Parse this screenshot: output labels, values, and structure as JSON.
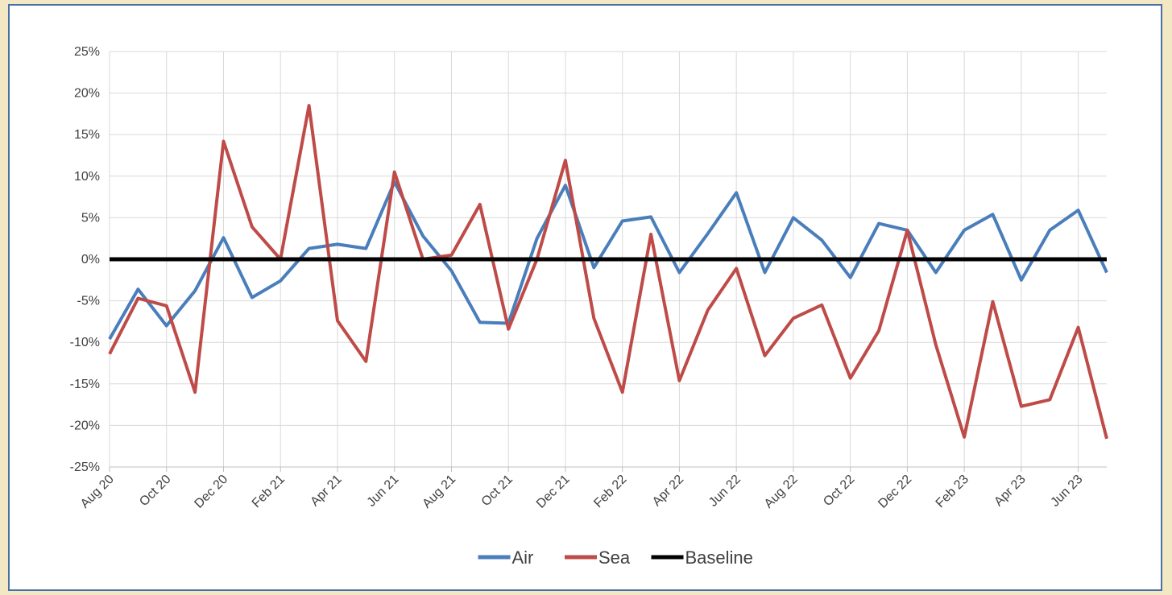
{
  "chart_data": {
    "type": "line",
    "title": "",
    "xlabel": "",
    "ylabel": "",
    "ylim": [
      -25,
      25
    ],
    "y_ticks": [
      25,
      20,
      15,
      10,
      5,
      0,
      -5,
      -10,
      -15,
      -20,
      -25
    ],
    "y_tick_labels": [
      "25%",
      "20%",
      "15%",
      "10%",
      "5%",
      "0%",
      "-5%",
      "-10%",
      "-15%",
      "-20%",
      "-25%"
    ],
    "x": [
      "Aug 20",
      "Sep 20",
      "Oct 20",
      "Nov 20",
      "Dec 20",
      "Jan 21",
      "Feb 21",
      "Mar 21",
      "Apr 21",
      "May 21",
      "Jun 21",
      "Jul 21",
      "Aug 21",
      "Sep 21",
      "Oct 21",
      "Nov 21",
      "Dec 21",
      "Jan 22",
      "Feb 22",
      "Mar 22",
      "Apr 22",
      "May 22",
      "Jun 22",
      "Jul 22",
      "Aug 22",
      "Sep 22",
      "Oct 22",
      "Nov 22",
      "Dec 22",
      "Jan 23",
      "Feb 23",
      "Mar 23",
      "Apr 23",
      "May 23",
      "Jun 23",
      "Jul 23"
    ],
    "x_tick_labels": [
      "Aug 20",
      "Oct 20",
      "Dec 20",
      "Feb 21",
      "Apr 21",
      "Jun 21",
      "Aug 21",
      "Oct 21",
      "Dec 21",
      "Feb 22",
      "Apr 22",
      "Jun 22",
      "Aug 22",
      "Oct 22",
      "Dec 22",
      "Feb 23",
      "Apr 23",
      "Jun 23"
    ],
    "grid": true,
    "legend_position": "bottom",
    "series": [
      {
        "name": "Air",
        "color": "#4a7ebb",
        "values": [
          -9.6,
          -3.6,
          -8.0,
          -3.8,
          2.6,
          -4.6,
          -2.6,
          1.3,
          1.8,
          1.3,
          9.3,
          2.8,
          -1.4,
          -7.6,
          -7.7,
          2.5,
          8.9,
          -1.0,
          4.6,
          5.1,
          -1.6,
          3.1,
          8.0,
          -1.6,
          5.0,
          2.3,
          -2.2,
          4.3,
          3.5,
          -1.6,
          3.5,
          5.4,
          -2.5,
          3.5,
          5.9,
          -1.6
        ]
      },
      {
        "name": "Sea",
        "color": "#be4b48",
        "values": [
          -11.4,
          -4.7,
          -5.6,
          -16.0,
          14.2,
          3.9,
          0.0,
          18.5,
          -7.4,
          -12.3,
          10.5,
          0.0,
          0.5,
          6.6,
          -8.4,
          0.0,
          11.9,
          -7.1,
          -16.0,
          3.0,
          -14.6,
          -6.1,
          -1.1,
          -11.6,
          -7.1,
          -5.5,
          -14.3,
          -8.6,
          3.5,
          -10.3,
          -21.4,
          -5.1,
          -17.7,
          -16.9,
          -8.2,
          -21.6
        ]
      },
      {
        "name": "Baseline",
        "color": "#000000",
        "values": [
          0,
          0,
          0,
          0,
          0,
          0,
          0,
          0,
          0,
          0,
          0,
          0,
          0,
          0,
          0,
          0,
          0,
          0,
          0,
          0,
          0,
          0,
          0,
          0,
          0,
          0,
          0,
          0,
          0,
          0,
          0,
          0,
          0,
          0,
          0,
          0
        ]
      }
    ]
  }
}
